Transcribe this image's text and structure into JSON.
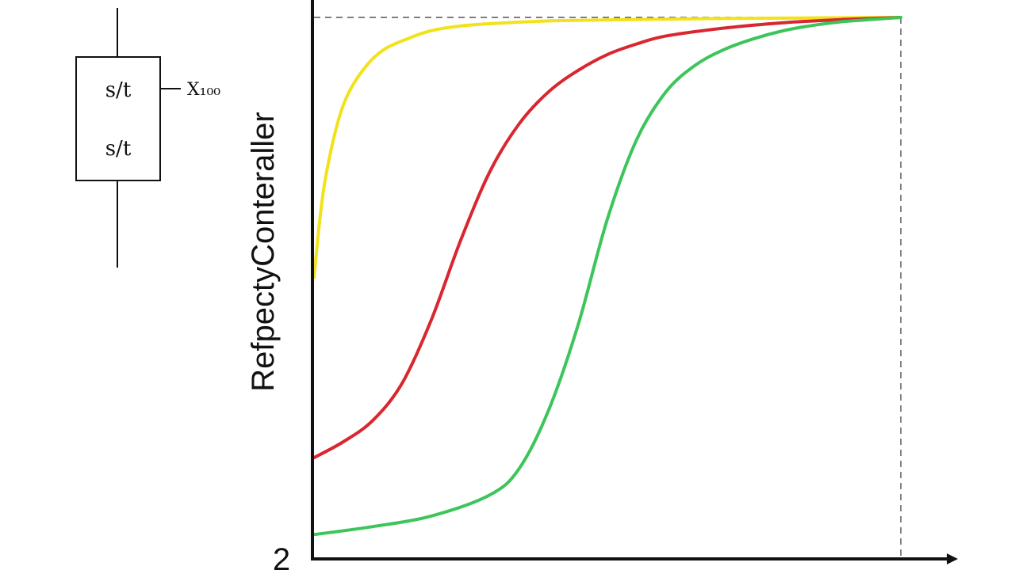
{
  "chart_data": {
    "type": "line",
    "title": "",
    "ylabel": "RefpectyConterаller",
    "xlabel": "",
    "origin_label": "2",
    "xlim": [
      0,
      1
    ],
    "ylim": [
      0,
      1
    ],
    "grid": false,
    "reference_level": 1.0,
    "reference_x": 1.0,
    "colors": {
      "axis": "#111111",
      "yellow": "#f2e21b",
      "red": "#d9262f",
      "green": "#3cc55a",
      "dashed": "#555555"
    },
    "series": [
      {
        "color": "#f2e21b",
        "x": [
          0.0,
          0.01,
          0.02,
          0.04,
          0.06,
          0.09,
          0.12,
          0.16,
          0.2,
          0.26,
          0.33,
          0.42,
          0.55,
          0.7,
          0.85,
          1.0
        ],
        "y": [
          0.51,
          0.62,
          0.7,
          0.8,
          0.86,
          0.91,
          0.94,
          0.96,
          0.975,
          0.985,
          0.99,
          0.994,
          0.996,
          0.998,
          0.999,
          1.0
        ]
      },
      {
        "color": "#d9262f",
        "x": [
          0.0,
          0.05,
          0.1,
          0.15,
          0.2,
          0.25,
          0.3,
          0.35,
          0.4,
          0.45,
          0.5,
          0.55,
          0.6,
          0.7,
          0.8,
          0.9,
          1.0
        ],
        "y": [
          0.17,
          0.2,
          0.24,
          0.31,
          0.43,
          0.58,
          0.71,
          0.8,
          0.86,
          0.9,
          0.93,
          0.95,
          0.965,
          0.98,
          0.99,
          0.996,
          1.0
        ]
      },
      {
        "color": "#3cc55a",
        "x": [
          0.0,
          0.1,
          0.2,
          0.3,
          0.35,
          0.4,
          0.45,
          0.5,
          0.55,
          0.6,
          0.65,
          0.7,
          0.75,
          0.8,
          0.85,
          0.9,
          0.95,
          1.0
        ],
        "y": [
          0.025,
          0.04,
          0.06,
          0.1,
          0.15,
          0.26,
          0.42,
          0.62,
          0.77,
          0.86,
          0.91,
          0.94,
          0.96,
          0.975,
          0.985,
          0.992,
          0.996,
          1.0
        ]
      }
    ]
  },
  "block_diagram": {
    "top_label": "s/t",
    "bottom_label": "s/t",
    "output_label": "X₁₀₀"
  }
}
